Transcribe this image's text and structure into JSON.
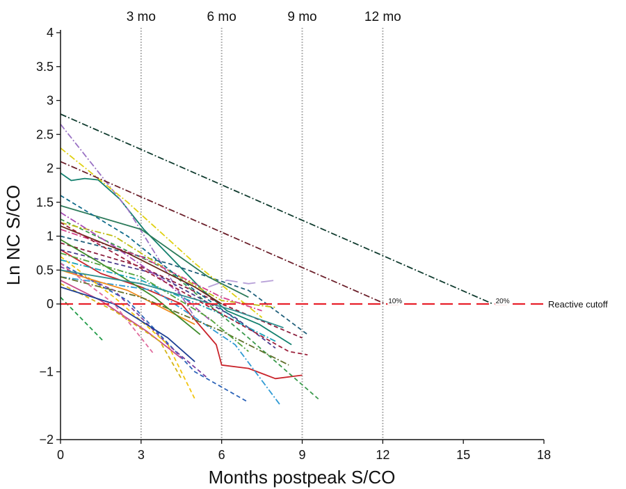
{
  "chart_data": {
    "type": "line",
    "title": "",
    "xlabel": "Months postpeak S/CO",
    "ylabel": "Ln NC S/CO",
    "xlim": [
      0,
      18
    ],
    "ylim": [
      -2,
      4
    ],
    "xticks": [
      0,
      3,
      6,
      9,
      12,
      15,
      18
    ],
    "yticks": [
      {
        "value": 4,
        "label": "4"
      },
      {
        "value": 3.5,
        "label": "3.5"
      },
      {
        "value": 3,
        "label": "3"
      },
      {
        "value": 2.5,
        "label": "2.5"
      },
      {
        "value": 2,
        "label": "2"
      },
      {
        "value": 1.5,
        "label": "1.5"
      },
      {
        "value": 1,
        "label": "1"
      },
      {
        "value": 0.5,
        "label": "0.5"
      },
      {
        "value": 0,
        "label": "0"
      },
      {
        "value": -1,
        "label": "−1"
      },
      {
        "value": -2,
        "label": "−2"
      }
    ],
    "grid": false,
    "month_markers": [
      {
        "x": 3,
        "label": "3 mo"
      },
      {
        "x": 6,
        "label": "6 mo"
      },
      {
        "x": 9,
        "label": "9 mo"
      },
      {
        "x": 12,
        "label": "12 mo"
      }
    ],
    "reference_lines": [
      {
        "label": "Reactive cutoff",
        "x": [
          0,
          18
        ],
        "y": [
          0,
          0
        ],
        "color": "#e8202a",
        "dash": "long-dash"
      },
      {
        "label": "10%",
        "x": [
          0,
          12.1
        ],
        "y": [
          2.1,
          0
        ],
        "color": "#6b1f2a",
        "dash": "dash-dot"
      },
      {
        "label": "20%",
        "x": [
          0,
          16.1
        ],
        "y": [
          2.8,
          0
        ],
        "color": "#0f3b2e",
        "dash": "dash-dot"
      }
    ],
    "series": [
      {
        "color": "#13806e",
        "dash": "solid",
        "x": [
          0,
          0.4,
          0.9,
          1.4,
          2.2,
          3.1,
          4.2,
          5.3,
          6.2,
          7.4,
          8.6
        ],
        "y": [
          1.93,
          1.82,
          1.85,
          1.83,
          1.55,
          1.1,
          0.65,
          0.2,
          -0.1,
          -0.3,
          -0.6
        ]
      },
      {
        "color": "#c9242b",
        "dash": "solid",
        "x": [
          0,
          1.5,
          3.0,
          4.5,
          5.8,
          6.0,
          7.0,
          8.0,
          9.0
        ],
        "y": [
          0.8,
          0.45,
          0.25,
          0.0,
          -0.6,
          -0.9,
          -0.95,
          -1.1,
          -1.05
        ]
      },
      {
        "color": "#3a9a4c",
        "dash": "dashed",
        "x": [
          0,
          4.0,
          7.0,
          9.6
        ],
        "y": [
          1.25,
          0.5,
          -0.5,
          -1.4
        ]
      },
      {
        "color": "#1f5f7a",
        "dash": "dashed",
        "x": [
          0,
          4.0,
          7.0,
          9.2
        ],
        "y": [
          1.0,
          0.6,
          0.2,
          -0.45
        ]
      },
      {
        "color": "#9a72c4",
        "dash": "dash-dot",
        "x": [
          0,
          2.5,
          5.0
        ],
        "y": [
          2.65,
          1.4,
          -0.2
        ]
      },
      {
        "color": "#e0d010",
        "dash": "dash-dot",
        "x": [
          0,
          2.5,
          5.0,
          7.5
        ],
        "y": [
          2.3,
          1.5,
          0.6,
          -0.2
        ]
      },
      {
        "color": "#bdbd10",
        "dash": "dash-dot",
        "x": [
          0,
          2.0,
          4.0,
          6.0,
          8.0
        ],
        "y": [
          1.2,
          1.0,
          0.5,
          0.05,
          -0.05
        ]
      },
      {
        "color": "#2a62b8",
        "dash": "dashed",
        "x": [
          0,
          2.5,
          5.0,
          7.0
        ],
        "y": [
          0.6,
          0.05,
          -1.0,
          -1.45
        ]
      },
      {
        "color": "#2e9ad4",
        "dash": "dash-dot",
        "x": [
          0,
          3.5,
          6.5,
          8.2
        ],
        "y": [
          0.4,
          0.2,
          -0.6,
          -1.5
        ]
      },
      {
        "color": "#7a3fa0",
        "dash": "dashed",
        "x": [
          0,
          2.0,
          4.0,
          5.5
        ],
        "y": [
          0.55,
          0.2,
          -0.6,
          -1.1
        ]
      },
      {
        "color": "#1f9a46",
        "dash": "dashed",
        "x": [
          0,
          1.6
        ],
        "y": [
          0.1,
          -0.55
        ]
      },
      {
        "color": "#8b1d3c",
        "dash": "dashed",
        "x": [
          0,
          3.0,
          6.0,
          9.0
        ],
        "y": [
          0.9,
          0.55,
          0.0,
          -0.5
        ]
      },
      {
        "color": "#b7a0d8",
        "dash": "long-dash",
        "x": [
          5.5,
          6.2,
          7.0,
          8.0
        ],
        "y": [
          0.25,
          0.35,
          0.3,
          0.35
        ]
      },
      {
        "color": "#f2c40c",
        "dash": "dashed",
        "x": [
          0,
          2.0,
          4.0,
          5.0
        ],
        "y": [
          0.7,
          0.1,
          -0.6,
          -1.4
        ]
      },
      {
        "color": "#d3408a",
        "dash": "dash-dot",
        "x": [
          0,
          3.0,
          6.0,
          7.5
        ],
        "y": [
          1.1,
          0.7,
          0.1,
          -0.1
        ]
      },
      {
        "color": "#2b7a5a",
        "dash": "solid",
        "x": [
          0,
          3.0,
          5.5,
          7.0
        ],
        "y": [
          1.45,
          1.1,
          0.4,
          0.1
        ]
      },
      {
        "color": "#f08a1c",
        "dash": "solid",
        "x": [
          0,
          2.5,
          5.0
        ],
        "y": [
          0.5,
          0.2,
          -0.3
        ]
      },
      {
        "color": "#4a3b8c",
        "dash": "dashed",
        "x": [
          0,
          3.5,
          6.5,
          8.0
        ],
        "y": [
          0.8,
          0.45,
          -0.2,
          -0.65
        ]
      },
      {
        "color": "#5f6f2a",
        "dash": "dash-dot",
        "x": [
          0,
          3.0,
          6.0,
          8.5
        ],
        "y": [
          0.4,
          0.1,
          -0.4,
          -0.9
        ]
      },
      {
        "color": "#c74a8a",
        "dash": "solid",
        "x": [
          0,
          1.5,
          3.2,
          4.5
        ],
        "y": [
          0.35,
          0.05,
          -0.4,
          -0.8
        ]
      },
      {
        "color": "#0f6b8a",
        "dash": "dashed",
        "x": [
          0,
          2.5,
          5.0,
          6.8
        ],
        "y": [
          1.6,
          1.0,
          0.2,
          -0.3
        ]
      },
      {
        "color": "#a64ab4",
        "dash": "dash-dot",
        "x": [
          0,
          2.0,
          4.0,
          5.6
        ],
        "y": [
          1.35,
          0.85,
          0.3,
          -0.25
        ]
      },
      {
        "color": "#3e8a2a",
        "dash": "solid",
        "x": [
          0,
          1.5,
          3.5,
          5.2
        ],
        "y": [
          0.95,
          0.6,
          0.1,
          -0.45
        ]
      },
      {
        "color": "#d4b418",
        "dash": "dashed",
        "x": [
          0,
          2.0,
          3.7,
          4.5
        ],
        "y": [
          0.3,
          -0.1,
          -0.55,
          -1.1
        ]
      },
      {
        "color": "#6a2a1a",
        "dash": "solid",
        "x": [
          0,
          2.5,
          5.0,
          6.0
        ],
        "y": [
          1.15,
          0.75,
          0.25,
          0.0
        ]
      },
      {
        "color": "#17a2b8",
        "dash": "dash-dot",
        "x": [
          0,
          3.0,
          6.0,
          8.0
        ],
        "y": [
          0.65,
          0.35,
          -0.15,
          -0.55
        ]
      },
      {
        "color": "#1c3f94",
        "dash": "solid",
        "x": [
          0,
          2.0,
          4.0,
          5.0
        ],
        "y": [
          0.25,
          0.0,
          -0.5,
          -0.85
        ]
      },
      {
        "color": "#9c1f3a",
        "dash": "dashed",
        "x": [
          0,
          4.0,
          8.5,
          9.2
        ],
        "y": [
          1.2,
          0.3,
          -0.7,
          -0.75
        ]
      },
      {
        "color": "#52a23a",
        "dash": "dash-dot",
        "x": [
          0,
          3.0,
          5.5,
          7.0
        ],
        "y": [
          0.75,
          0.4,
          -0.2,
          -0.7
        ]
      },
      {
        "color": "#e06a9c",
        "dash": "dashed",
        "x": [
          0,
          2.0,
          3.5
        ],
        "y": [
          0.6,
          0.0,
          -0.75
        ]
      },
      {
        "color": "#2f8f8f",
        "dash": "solid",
        "x": [
          0,
          3.0,
          6.5,
          8.3
        ],
        "y": [
          0.5,
          0.3,
          -0.1,
          -0.35
        ]
      }
    ]
  }
}
